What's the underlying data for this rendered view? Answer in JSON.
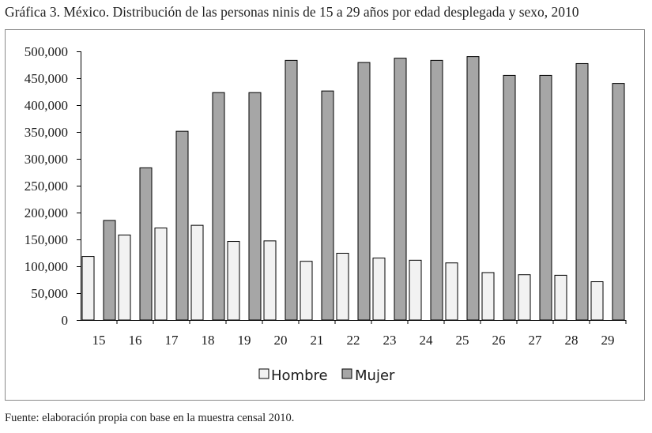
{
  "title": "Gráfica 3. México. Distribución de las personas ninis de 15 a 29 años por edad desplegada y sexo, 2010",
  "source": "Fuente: elaboración propia con base en la muestra censal 2010.",
  "colors": {
    "hombre": "#f2f2f2",
    "mujer": "#a6a6a6",
    "stroke": "#000000"
  },
  "chart_data": {
    "type": "bar",
    "title": "Gráfica 3. México. Distribución de las personas ninis de 15 a 29 años por edad desplegada y sexo, 2010",
    "xlabel": "",
    "ylabel": "",
    "categories": [
      "15",
      "16",
      "17",
      "18",
      "19",
      "20",
      "21",
      "22",
      "23",
      "24",
      "25",
      "26",
      "27",
      "28",
      "29"
    ],
    "series": [
      {
        "name": "Hombre",
        "values": [
          119000,
          159000,
          172000,
          177000,
          147000,
          148000,
          110000,
          125000,
          116000,
          112000,
          107000,
          89000,
          85000,
          84000,
          72000
        ]
      },
      {
        "name": "Mujer",
        "values": [
          186000,
          284000,
          352000,
          424000,
          424000,
          484000,
          427000,
          480000,
          488000,
          484000,
          491000,
          456000,
          456000,
          478000,
          441000
        ]
      }
    ],
    "ylim": [
      0,
      500000
    ],
    "yticks": [
      "0",
      "50,000",
      "100,000",
      "150,000",
      "200,000",
      "250,000",
      "300,000",
      "350,000",
      "400,000",
      "450,000",
      "500,000"
    ],
    "grid": false,
    "legend_position": "bottom-center"
  }
}
